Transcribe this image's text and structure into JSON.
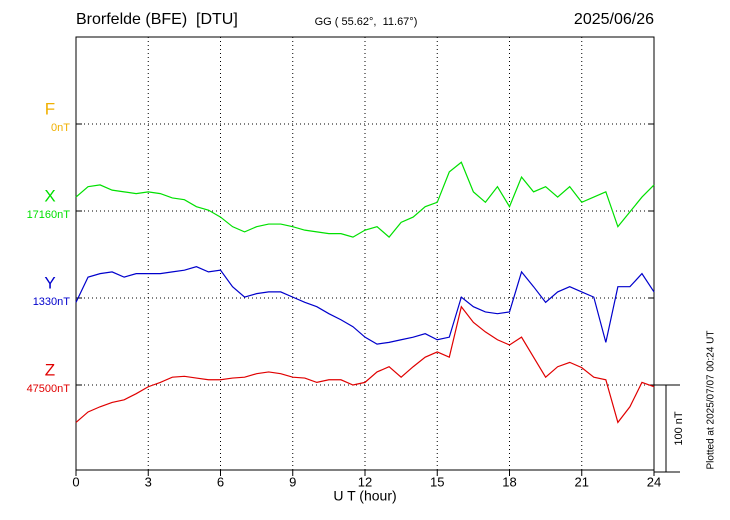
{
  "chart_data": {
    "type": "line",
    "title": "Brorfelde (BFE)  [DTU]",
    "subtitle": "GG ( 55.62°,  11.67°)",
    "date": "2025/06/26",
    "xlabel": "U T (hour)",
    "note": "Plotted at 2025/07/07 00:24 UT",
    "scale_bar": {
      "value": 100,
      "label": "100 nT"
    },
    "xlim": [
      0,
      24
    ],
    "xticks": [
      0,
      3,
      6,
      9,
      12,
      15,
      18,
      21,
      24
    ],
    "grid": true,
    "x": [
      0,
      0.5,
      1,
      1.5,
      2,
      2.5,
      3,
      3.5,
      4,
      4.5,
      5,
      5.5,
      6,
      6.5,
      7,
      7.5,
      8,
      8.5,
      9,
      9.5,
      10,
      10.5,
      11,
      11.5,
      12,
      12.5,
      13,
      13.5,
      14,
      14.5,
      15,
      15.5,
      16,
      16.5,
      17,
      17.5,
      18,
      18.5,
      19,
      19.5,
      20,
      20.5,
      21,
      21.5,
      22,
      22.5,
      23,
      23.5,
      24
    ],
    "extra_channel": {
      "name": "F",
      "color": "#f0b000",
      "baseline": {
        "value": 0,
        "label": "0nT"
      }
    },
    "series": [
      {
        "name": "X",
        "color": "#00e000",
        "baseline": {
          "value": 17160,
          "label": "17160nT"
        },
        "values": [
          17176,
          17188,
          17190,
          17184,
          17182,
          17180,
          17182,
          17180,
          17175,
          17173,
          17165,
          17161,
          17153,
          17142,
          17136,
          17142,
          17145,
          17145,
          17142,
          17138,
          17136,
          17134,
          17134,
          17130,
          17138,
          17142,
          17130,
          17147,
          17153,
          17165,
          17170,
          17205,
          17216,
          17182,
          17170,
          17188,
          17165,
          17199,
          17182,
          17188,
          17176,
          17188,
          17170,
          17176,
          17182,
          17142,
          17159,
          17176,
          17190
        ]
      },
      {
        "name": "Y",
        "color": "#0000cc",
        "baseline": {
          "value": 1330,
          "label": "1330nT"
        },
        "values": [
          1325,
          1354,
          1358,
          1360,
          1354,
          1358,
          1358,
          1358,
          1360,
          1362,
          1366,
          1360,
          1362,
          1343,
          1331,
          1335,
          1337,
          1337,
          1331,
          1325,
          1320,
          1312,
          1305,
          1297,
          1285,
          1277,
          1279,
          1282,
          1285,
          1289,
          1282,
          1285,
          1331,
          1320,
          1314,
          1312,
          1314,
          1360,
          1343,
          1325,
          1337,
          1343,
          1337,
          1331,
          1279,
          1343,
          1343,
          1358,
          1337
        ]
      },
      {
        "name": "Z",
        "color": "#e00000",
        "baseline": {
          "value": 47500,
          "label": "47500nT"
        },
        "values": [
          47457,
          47469,
          47475,
          47480,
          47483,
          47490,
          47498,
          47503,
          47509,
          47510,
          47508,
          47506,
          47506,
          47508,
          47509,
          47513,
          47515,
          47513,
          47509,
          47508,
          47503,
          47506,
          47506,
          47500,
          47503,
          47515,
          47521,
          47509,
          47521,
          47532,
          47538,
          47532,
          47590,
          47572,
          47561,
          47552,
          47546,
          47555,
          47532,
          47509,
          47521,
          47526,
          47520,
          47509,
          47506,
          47457,
          47475,
          47503,
          47498
        ]
      }
    ]
  }
}
